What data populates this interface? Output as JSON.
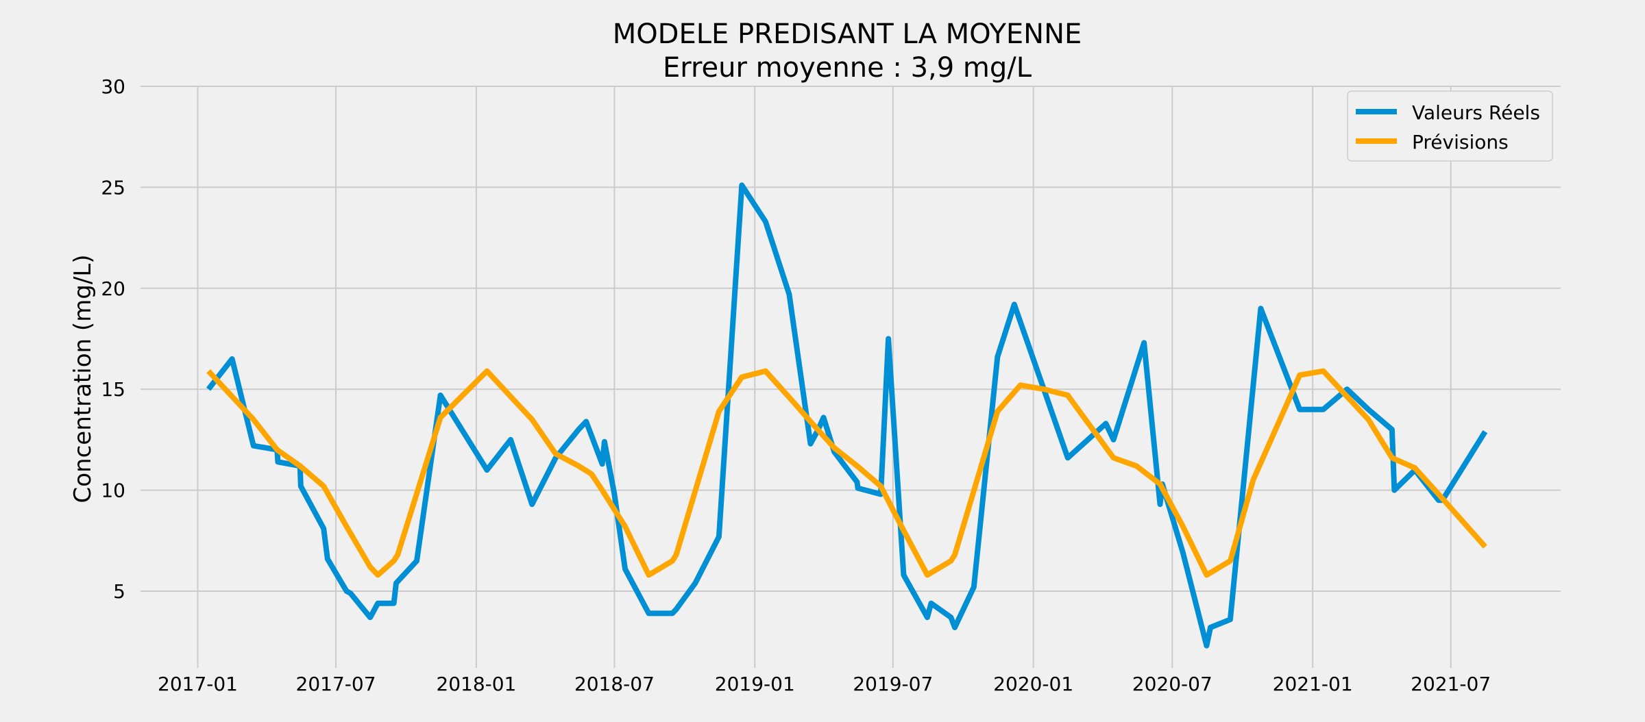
{
  "chart_data": {
    "type": "line",
    "title": "MODELE PREDISANT LA MOYENNE",
    "subtitle": "Erreur moyenne : 3,9 mg/L",
    "xlabel": "",
    "ylabel": "Concentration (mg/L)",
    "xlim": [
      "2016-10-18",
      "2021-11-22"
    ],
    "ylim": [
      1.2,
      30
    ],
    "x_ticks": [
      "2017-01",
      "2017-07",
      "2018-01",
      "2018-07",
      "2019-01",
      "2019-07",
      "2020-01",
      "2020-07",
      "2021-01",
      "2021-07"
    ],
    "y_ticks": [
      5,
      10,
      15,
      20,
      25,
      30
    ],
    "grid": true,
    "legend": {
      "placement": "top-right",
      "entries": [
        "Valeurs Réels",
        "Prévisions"
      ]
    },
    "colors": {
      "background": "#f0f0f0",
      "grid": "#cbcbcb",
      "actual": "#008fd5",
      "forecast": "#ffa500"
    },
    "series": [
      {
        "name": "Valeurs Réels",
        "color": "#008fd5",
        "points": [
          [
            "2017-01-15",
            15.0
          ],
          [
            "2017-02-15",
            16.5
          ],
          [
            "2017-03-15",
            12.2
          ],
          [
            "2017-04-15",
            12.0
          ],
          [
            "2017-04-16",
            11.4
          ],
          [
            "2017-05-15",
            11.2
          ],
          [
            "2017-05-16",
            10.2
          ],
          [
            "2017-06-15",
            8.1
          ],
          [
            "2017-06-20",
            6.6
          ],
          [
            "2017-07-15",
            5.0
          ],
          [
            "2017-07-20",
            4.9
          ],
          [
            "2017-08-15",
            3.7
          ],
          [
            "2017-08-25",
            4.4
          ],
          [
            "2017-09-15",
            4.4
          ],
          [
            "2017-09-18",
            5.4
          ],
          [
            "2017-10-15",
            6.5
          ],
          [
            "2017-11-15",
            14.7
          ],
          [
            "2018-01-15",
            11.0
          ],
          [
            "2018-02-15",
            12.5
          ],
          [
            "2018-03-15",
            9.3
          ],
          [
            "2018-04-15",
            11.6
          ],
          [
            "2018-05-15",
            13.0
          ],
          [
            "2018-05-25",
            13.4
          ],
          [
            "2018-06-15",
            11.3
          ],
          [
            "2018-06-18",
            12.4
          ],
          [
            "2018-07-01",
            9.8
          ],
          [
            "2018-07-15",
            6.1
          ],
          [
            "2018-08-15",
            3.9
          ],
          [
            "2018-09-15",
            3.9
          ],
          [
            "2018-09-20",
            4.1
          ],
          [
            "2018-10-15",
            5.4
          ],
          [
            "2018-11-15",
            7.7
          ],
          [
            "2018-12-15",
            25.1
          ],
          [
            "2019-01-15",
            23.3
          ],
          [
            "2019-02-15",
            19.7
          ],
          [
            "2019-03-15",
            12.3
          ],
          [
            "2019-03-25",
            13.0
          ],
          [
            "2019-04-01",
            13.6
          ],
          [
            "2019-04-15",
            11.9
          ],
          [
            "2019-05-15",
            10.4
          ],
          [
            "2019-05-16",
            10.1
          ],
          [
            "2019-06-15",
            9.8
          ],
          [
            "2019-06-25",
            17.5
          ],
          [
            "2019-07-15",
            5.8
          ],
          [
            "2019-08-15",
            3.7
          ],
          [
            "2019-08-20",
            4.4
          ],
          [
            "2019-09-15",
            3.7
          ],
          [
            "2019-09-20",
            3.2
          ],
          [
            "2019-10-15",
            5.2
          ],
          [
            "2019-11-15",
            16.6
          ],
          [
            "2019-12-07",
            19.2
          ],
          [
            "2020-02-15",
            11.6
          ],
          [
            "2020-04-05",
            13.3
          ],
          [
            "2020-04-15",
            12.5
          ],
          [
            "2020-05-25",
            17.3
          ],
          [
            "2020-06-15",
            9.3
          ],
          [
            "2020-06-18",
            10.3
          ],
          [
            "2020-07-15",
            6.9
          ],
          [
            "2020-08-15",
            2.3
          ],
          [
            "2020-08-20",
            3.2
          ],
          [
            "2020-09-15",
            3.6
          ],
          [
            "2020-10-25",
            19.0
          ],
          [
            "2020-12-15",
            14.0
          ],
          [
            "2021-01-15",
            14.0
          ],
          [
            "2021-02-15",
            15.0
          ],
          [
            "2021-03-15",
            14.0
          ],
          [
            "2021-04-15",
            13.0
          ],
          [
            "2021-04-18",
            10.0
          ],
          [
            "2021-05-15",
            11.0
          ],
          [
            "2021-06-15",
            9.5
          ],
          [
            "2021-06-20",
            9.5
          ],
          [
            "2021-08-15",
            12.9
          ]
        ]
      },
      {
        "name": "Prévisions",
        "color": "#ffa500",
        "points": [
          [
            "2017-01-15",
            15.9
          ],
          [
            "2017-03-15",
            13.5
          ],
          [
            "2017-04-15",
            12.0
          ],
          [
            "2017-05-15",
            11.2
          ],
          [
            "2017-06-15",
            10.2
          ],
          [
            "2017-07-15",
            8.2
          ],
          [
            "2017-08-15",
            6.2
          ],
          [
            "2017-08-25",
            5.8
          ],
          [
            "2017-09-15",
            6.5
          ],
          [
            "2017-09-20",
            6.8
          ],
          [
            "2017-11-15",
            13.6
          ],
          [
            "2018-01-15",
            15.9
          ],
          [
            "2018-03-15",
            13.5
          ],
          [
            "2018-04-15",
            11.8
          ],
          [
            "2018-05-15",
            11.2
          ],
          [
            "2018-06-01",
            10.8
          ],
          [
            "2018-06-15",
            10.0
          ],
          [
            "2018-07-15",
            8.2
          ],
          [
            "2018-08-15",
            5.8
          ],
          [
            "2018-09-15",
            6.5
          ],
          [
            "2018-09-20",
            6.8
          ],
          [
            "2018-11-15",
            13.9
          ],
          [
            "2018-12-15",
            15.6
          ],
          [
            "2019-01-15",
            15.9
          ],
          [
            "2019-02-15",
            14.6
          ],
          [
            "2019-03-15",
            13.4
          ],
          [
            "2019-04-15",
            12.1
          ],
          [
            "2019-05-15",
            11.2
          ],
          [
            "2019-06-15",
            10.2
          ],
          [
            "2019-07-15",
            8.0
          ],
          [
            "2019-08-15",
            5.8
          ],
          [
            "2019-09-15",
            6.5
          ],
          [
            "2019-09-20",
            6.8
          ],
          [
            "2019-11-15",
            13.9
          ],
          [
            "2019-12-15",
            15.2
          ],
          [
            "2020-01-15",
            15.0
          ],
          [
            "2020-02-15",
            14.7
          ],
          [
            "2020-04-15",
            11.6
          ],
          [
            "2020-05-15",
            11.2
          ],
          [
            "2020-06-15",
            10.3
          ],
          [
            "2020-07-15",
            8.2
          ],
          [
            "2020-08-15",
            5.8
          ],
          [
            "2020-09-15",
            6.5
          ],
          [
            "2020-10-15",
            10.5
          ],
          [
            "2020-12-15",
            15.7
          ],
          [
            "2021-01-15",
            15.9
          ],
          [
            "2021-03-15",
            13.5
          ],
          [
            "2021-04-15",
            11.6
          ],
          [
            "2021-05-15",
            11.1
          ],
          [
            "2021-06-15",
            9.8
          ],
          [
            "2021-08-15",
            7.2
          ]
        ]
      }
    ]
  }
}
